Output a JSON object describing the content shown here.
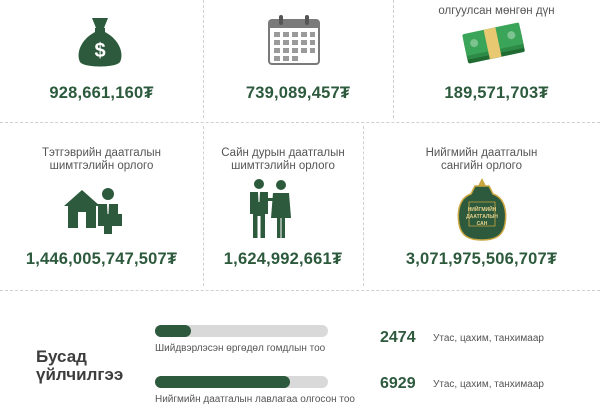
{
  "top": [
    {
      "label": "",
      "amount": "928,661,160₮"
    },
    {
      "label": "",
      "amount": "739,089,457₮"
    },
    {
      "label": "олгуулсан мөнгөн дүн",
      "amount": "189,571,703₮"
    }
  ],
  "middle": [
    {
      "label_1": "Тэтгэврийн даатгалын",
      "label_2": "шимтгэлийн орлого",
      "amount": "1,446,005,747,507₮"
    },
    {
      "label_1": "Сайн дурын даатгалын",
      "label_2": "шимтгэлийн орлого",
      "amount": "1,624,992,661₮"
    },
    {
      "label_1": "Нийгмийн даатгалын",
      "label_2": "сангийн орлого",
      "amount": "3,071,975,506,707₮"
    }
  ],
  "seal_text": [
    "НИЙГМИЙН",
    "ДААТГАЛЫН",
    "САН"
  ],
  "services": {
    "title_1": "Бусад",
    "title_2": "үйлчилгээ",
    "rows": [
      {
        "caption": "Шийдвэрлэсэн өргөдөл гомдлын тоо",
        "count": "2474",
        "channel": "Утас, цахим, танхимаар",
        "fill": 0.21
      },
      {
        "caption": "Нийгмийн даатгалын лавлагаа олгосон тоо",
        "count": "6929",
        "channel": "Утас, цахим, танхимаар",
        "fill": 0.78
      }
    ]
  },
  "colors": {
    "accent": "#2d5a3d",
    "track": "#d9d9d9"
  }
}
